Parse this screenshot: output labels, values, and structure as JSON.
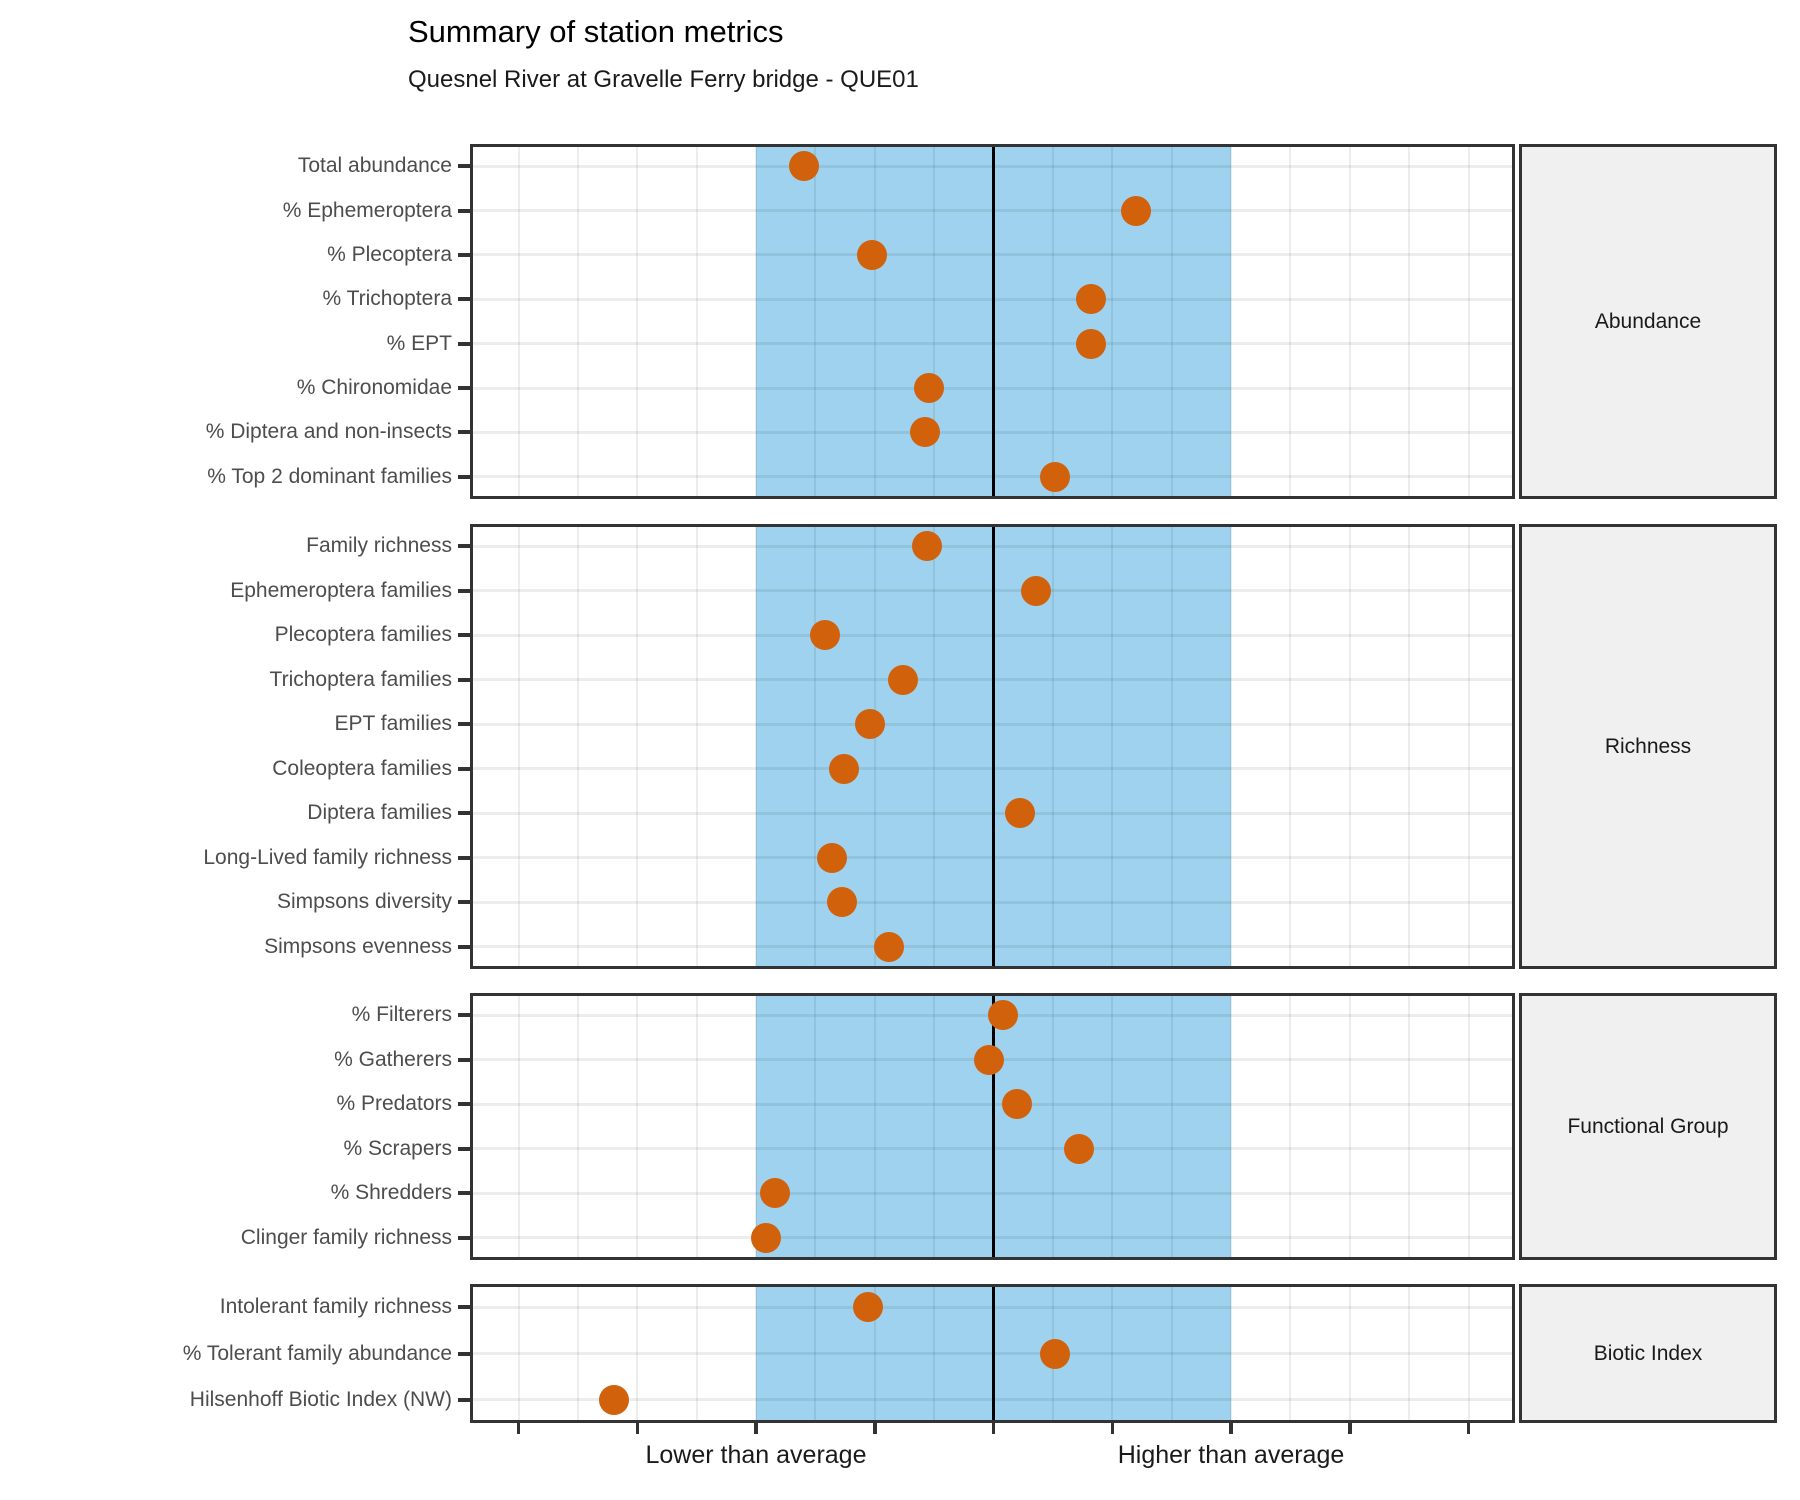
{
  "chart_data": {
    "type": "scatter",
    "title": "Summary of station metrics",
    "subtitle": "Quesnel River at Gravelle Ferry bridge - QUE01",
    "orientation": "horizontal-dotplot",
    "grid": true,
    "x_axis": {
      "min": -2.2,
      "max": 2.2,
      "center_line": 0,
      "average_band": [
        -1,
        1
      ],
      "tick_step": 0.5,
      "grid_step": 0.25,
      "tick_labels": [
        {
          "value": -1,
          "label": "Lower than average"
        },
        {
          "value": 1,
          "label": "Higher than average"
        }
      ]
    },
    "colors": {
      "point": "#D2610C",
      "band": "#9ED2EE",
      "center_line": "#000000",
      "panel_border": "#333333",
      "strip_fill": "#F0F0F0",
      "axis_text": "#4D4D4D"
    },
    "panels": [
      {
        "label": "Abundance",
        "metrics": [
          {
            "label": "Total abundance",
            "value": -0.8
          },
          {
            "label": "% Ephemeroptera",
            "value": 0.6
          },
          {
            "label": "% Plecoptera",
            "value": -0.51
          },
          {
            "label": "% Trichoptera",
            "value": 0.41
          },
          {
            "label": "% EPT",
            "value": 0.41
          },
          {
            "label": "% Chironomidae",
            "value": -0.27
          },
          {
            "label": "% Diptera and non-insects",
            "value": -0.29
          },
          {
            "label": "% Top 2 dominant families",
            "value": 0.26
          }
        ]
      },
      {
        "label": "Richness",
        "metrics": [
          {
            "label": "Family richness",
            "value": -0.28
          },
          {
            "label": "Ephemeroptera families",
            "value": 0.18
          },
          {
            "label": "Plecoptera families",
            "value": -0.71
          },
          {
            "label": "Trichoptera families",
            "value": -0.38
          },
          {
            "label": "EPT families",
            "value": -0.52
          },
          {
            "label": "Coleoptera families",
            "value": -0.63
          },
          {
            "label": "Diptera families",
            "value": 0.11
          },
          {
            "label": "Long-Lived family richness",
            "value": -0.68
          },
          {
            "label": "Simpsons diversity",
            "value": -0.64
          },
          {
            "label": "Simpsons evenness",
            "value": -0.44
          }
        ]
      },
      {
        "label": "Functional Group",
        "metrics": [
          {
            "label": "% Filterers",
            "value": 0.04
          },
          {
            "label": "% Gatherers",
            "value": -0.02
          },
          {
            "label": "% Predators",
            "value": 0.1
          },
          {
            "label": "% Scrapers",
            "value": 0.36
          },
          {
            "label": "% Shredders",
            "value": -0.92
          },
          {
            "label": "Clinger family richness",
            "value": -0.96
          }
        ]
      },
      {
        "label": "Biotic Index",
        "metrics": [
          {
            "label": "Intolerant family richness",
            "value": -0.53
          },
          {
            "label": "% Tolerant family abundance",
            "value": 0.26
          },
          {
            "label": "Hilsenhoff Biotic Index (NW)",
            "value": -1.6
          }
        ]
      }
    ]
  }
}
